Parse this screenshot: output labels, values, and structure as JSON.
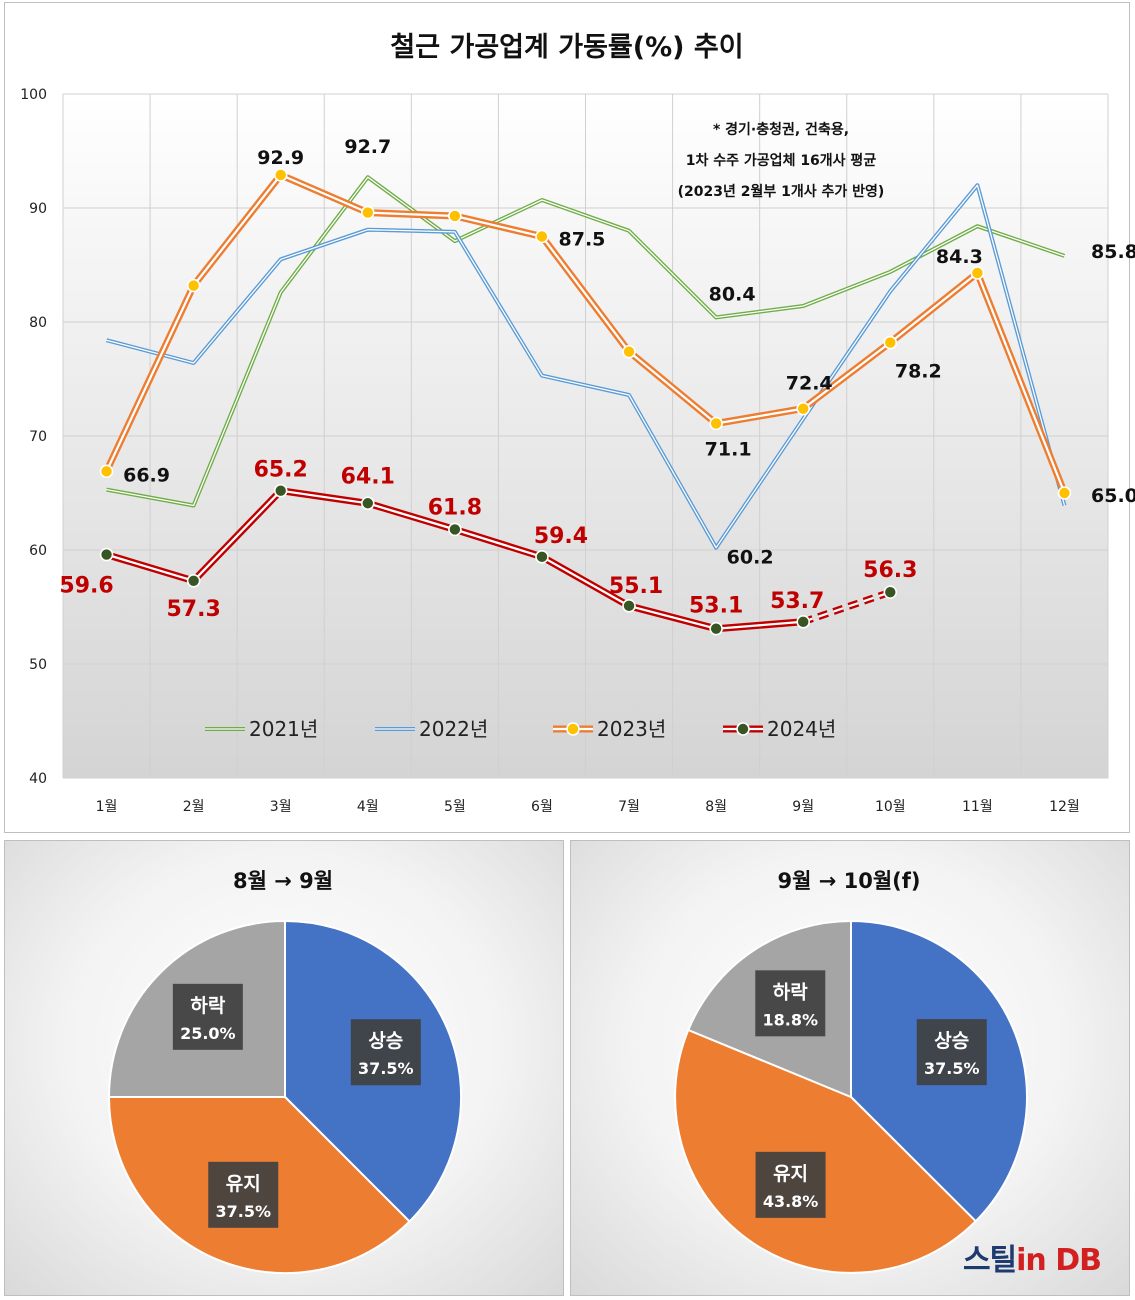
{
  "chart_data": [
    {
      "type": "line",
      "title": "철근 가공업계 가동률(%) 추이",
      "note": [
        "* 경기·충청권, 건축용,",
        "1차 수주 가공업체 16개사 평균",
        "(2023년 2월부 1개사 추가 반영)"
      ],
      "categories": [
        "1월",
        "2월",
        "3월",
        "4월",
        "5월",
        "6월",
        "7월",
        "8월",
        "9월",
        "10월",
        "11월",
        "12월"
      ],
      "ylim": [
        40,
        100
      ],
      "yticks": [
        100,
        90,
        80,
        70,
        60,
        50,
        40
      ],
      "grid": true,
      "legend_position": "bottom",
      "series": [
        {
          "name": "2021년",
          "color": "#70ad47",
          "values": [
            65.3,
            63.9,
            82.6,
            92.7,
            87.1,
            90.7,
            88.0,
            80.4,
            81.4,
            84.4,
            88.4,
            85.8
          ]
        },
        {
          "name": "2022년",
          "color": "#5b9bd5",
          "values": [
            78.4,
            76.4,
            85.5,
            88.1,
            87.9,
            75.3,
            73.6,
            60.2,
            71.5,
            82.7,
            92.0,
            63.9
          ]
        },
        {
          "name": "2023년",
          "color": "#ed7d31",
          "values": [
            66.9,
            83.2,
            92.9,
            89.6,
            89.3,
            87.5,
            77.4,
            71.1,
            72.4,
            78.2,
            84.3,
            65.0
          ]
        },
        {
          "name": "2024년",
          "color": "#c00000",
          "values": [
            59.6,
            57.3,
            65.2,
            64.1,
            61.8,
            59.4,
            55.1,
            53.1,
            53.7,
            56.3,
            null,
            null
          ],
          "dashed_from_index": 8
        }
      ],
      "data_labels": [
        {
          "text": "66.9",
          "series": "2023년",
          "index": 0
        },
        {
          "text": "92.9",
          "series": "2023년",
          "index": 2
        },
        {
          "text": "92.7",
          "series": "2021년",
          "index": 3
        },
        {
          "text": "87.5",
          "series": "2023년",
          "index": 5
        },
        {
          "text": "80.4",
          "series": "2021년",
          "index": 7
        },
        {
          "text": "71.1",
          "series": "2023년",
          "index": 7
        },
        {
          "text": "60.2",
          "series": "2022년",
          "index": 7
        },
        {
          "text": "72.4",
          "series": "2023년",
          "index": 8
        },
        {
          "text": "78.2",
          "series": "2023년",
          "index": 9
        },
        {
          "text": "84.3",
          "series": "2023년",
          "index": 10
        },
        {
          "text": "85.8",
          "series": "2021년",
          "index": 11
        },
        {
          "text": "65.0",
          "series": "2023년",
          "index": 11
        },
        {
          "text": "59.6",
          "series": "2024년",
          "index": 0
        },
        {
          "text": "57.3",
          "series": "2024년",
          "index": 1
        },
        {
          "text": "65.2",
          "series": "2024년",
          "index": 2
        },
        {
          "text": "64.1",
          "series": "2024년",
          "index": 3
        },
        {
          "text": "61.8",
          "series": "2024년",
          "index": 4
        },
        {
          "text": "59.4",
          "series": "2024년",
          "index": 5
        },
        {
          "text": "55.1",
          "series": "2024년",
          "index": 6
        },
        {
          "text": "53.1",
          "series": "2024년",
          "index": 7
        },
        {
          "text": "53.7",
          "series": "2024년",
          "index": 8
        },
        {
          "text": "56.3",
          "series": "2024년",
          "index": 9
        }
      ]
    },
    {
      "type": "pie",
      "title": "8월 → 9월",
      "slices": [
        {
          "label": "상승",
          "value": 37.5,
          "display": "37.5%",
          "color": "#4472c4"
        },
        {
          "label": "유지",
          "value": 37.5,
          "display": "37.5%",
          "color": "#ed7d31"
        },
        {
          "label": "하락",
          "value": 25.0,
          "display": "25.0%",
          "color": "#a5a5a5"
        }
      ]
    },
    {
      "type": "pie",
      "title": "9월 → 10월(f)",
      "slices": [
        {
          "label": "상승",
          "value": 37.5,
          "display": "37.5%",
          "color": "#4472c4"
        },
        {
          "label": "유지",
          "value": 43.8,
          "display": "43.8%",
          "color": "#ed7d31"
        },
        {
          "label": "하락",
          "value": 18.8,
          "display": "18.8%",
          "color": "#a5a5a5"
        }
      ]
    }
  ],
  "watermark": {
    "part1": "스틸",
    "part2": "in DB"
  }
}
